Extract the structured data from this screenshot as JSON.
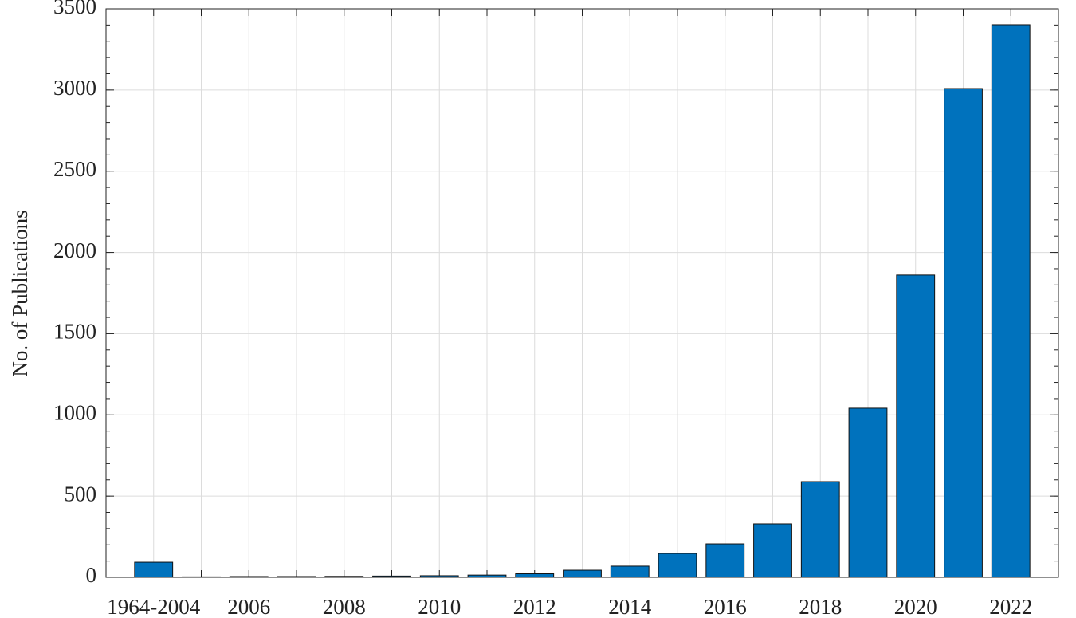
{
  "chart_data": {
    "type": "bar",
    "y_label": "No.  of  Publications",
    "categories": [
      "1964-2004",
      null,
      "2006",
      null,
      "2008",
      null,
      "2010",
      null,
      "2012",
      null,
      "2014",
      null,
      "2016",
      null,
      "2018",
      null,
      "2020",
      null,
      "2022"
    ],
    "values": [
      93,
      3,
      5,
      5,
      6,
      8,
      10,
      14,
      22,
      44,
      69,
      147,
      206,
      329,
      589,
      1041,
      1861,
      3009,
      3402
    ],
    "color": "#0072bd",
    "ylim": [
      0,
      3500
    ],
    "yticks": [
      0,
      500,
      1000,
      1500,
      2000,
      2500,
      3000,
      3500
    ],
    "grid": true
  }
}
